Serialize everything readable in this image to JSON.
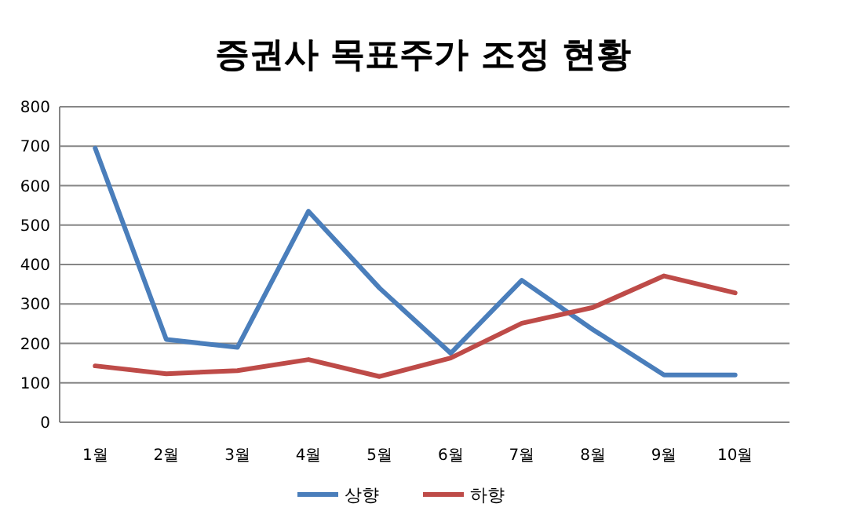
{
  "chart_data": {
    "type": "line",
    "title": "증권사 목표주가 조정 현황",
    "categories": [
      "1월",
      "2월",
      "3월",
      "4월",
      "5월",
      "6월",
      "7월",
      "8월",
      "9월",
      "10월"
    ],
    "series": [
      {
        "name": "상향",
        "color": "#4a7ebb",
        "values": [
          695,
          210,
          190,
          535,
          340,
          175,
          360,
          235,
          120,
          120
        ]
      },
      {
        "name": "하향",
        "color": "#be4b48",
        "values": [
          143,
          123,
          131,
          159,
          116,
          163,
          251,
          291,
          371,
          328
        ]
      }
    ],
    "ylim": [
      0,
      800
    ],
    "yticks": [
      0,
      100,
      200,
      300,
      400,
      500,
      600,
      700,
      800
    ],
    "grid": "y",
    "legend": "bottom",
    "marker": "none",
    "line_style": "solid"
  }
}
